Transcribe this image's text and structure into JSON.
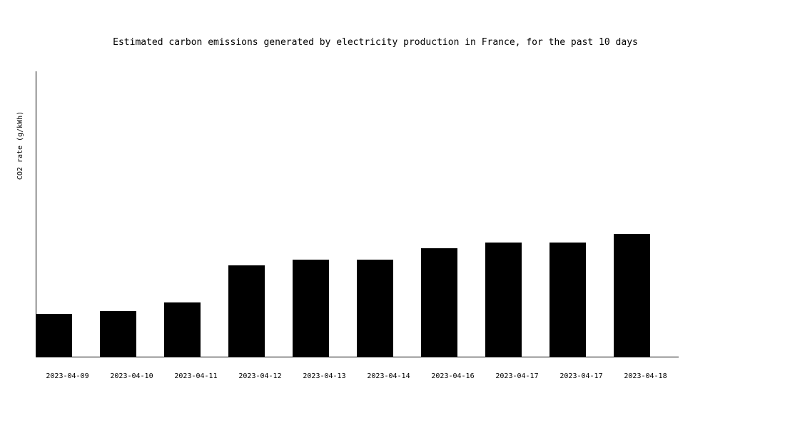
{
  "chart_data": {
    "type": "bar",
    "title": "Estimated carbon emissions generated by electricity production in France, for the past 10 days",
    "xlabel": "",
    "ylabel": "CO2 rate (g/kWh)",
    "categories": [
      "2023-04-09",
      "2023-04-10",
      "2023-04-11",
      "2023-04-12",
      "2023-04-13",
      "2023-04-14",
      "2023-04-16",
      "2023-04-17",
      "2023-04-17",
      "2023-04-18"
    ],
    "values": [
      15,
      16,
      19,
      32,
      34,
      34,
      38,
      40,
      40,
      43
    ],
    "ylim": [
      0,
      100
    ],
    "grid": false,
    "bar_color": "#000000",
    "axis_color": "#000000"
  }
}
